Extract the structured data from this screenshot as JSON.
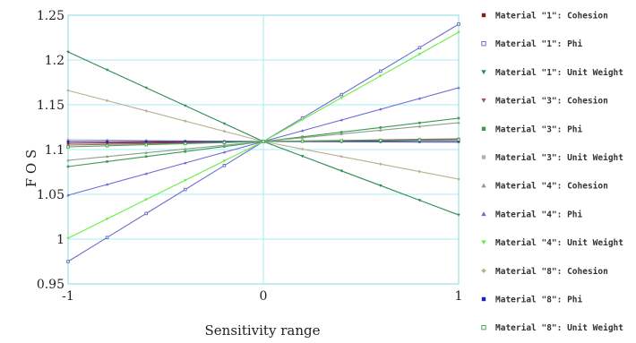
{
  "chart_data": {
    "type": "line",
    "title": "",
    "xlabel": "Sensitivity range",
    "ylabel": "F O S",
    "xlim": [
      -1,
      1
    ],
    "ylim": [
      0.95,
      1.25
    ],
    "x_ticks": [
      "-1",
      "0",
      "1"
    ],
    "y_ticks": [
      "0.95",
      "1",
      "1.05",
      "1.1",
      "1.15",
      "1.2",
      "1.25"
    ],
    "grid": true,
    "legend_position": "right",
    "x": [
      -1,
      -0.8,
      -0.6,
      -0.4,
      -0.2,
      0,
      0.2,
      0.4,
      0.6,
      0.8,
      1
    ],
    "series": [
      {
        "name": "Material \"1\": Cohesion",
        "color": "#8b1a1a",
        "marker": "square",
        "values": [
          1.107,
          1.1074,
          1.1078,
          1.1082,
          1.1086,
          1.109,
          1.1094,
          1.1098,
          1.1102,
          1.1106,
          1.111
        ]
      },
      {
        "name": "Material \"1\": Phi",
        "color": "#7070c8",
        "marker": "square-open",
        "values": [
          0.975,
          1.0018,
          1.0286,
          1.0554,
          1.0822,
          1.109,
          1.1352,
          1.1614,
          1.1876,
          1.2138,
          1.24
        ]
      },
      {
        "name": "Material \"1\": Unit Weight",
        "color": "#2e8b57",
        "marker": "triangle-down",
        "values": [
          1.209,
          1.189,
          1.169,
          1.149,
          1.129,
          1.109,
          1.0926,
          1.0762,
          1.0598,
          1.0434,
          1.027
        ]
      },
      {
        "name": "Material \"3\": Cohesion",
        "color": "#a05a6a",
        "marker": "triangle-down",
        "values": [
          1.105,
          1.1058,
          1.1066,
          1.1074,
          1.1082,
          1.109,
          1.1096,
          1.1102,
          1.1108,
          1.1114,
          1.112
        ]
      },
      {
        "name": "Material \"3\": Phi",
        "color": "#3c9a50",
        "marker": "square",
        "values": [
          1.081,
          1.0866,
          1.0922,
          1.0978,
          1.1034,
          1.109,
          1.1142,
          1.1194,
          1.1246,
          1.1298,
          1.135
        ]
      },
      {
        "name": "Material \"3\": Unit Weight",
        "color": "#b0b0b0",
        "marker": "square",
        "values": [
          1.111,
          1.1106,
          1.1102,
          1.1098,
          1.1094,
          1.109,
          1.1088,
          1.1086,
          1.1084,
          1.1082,
          1.108
        ]
      },
      {
        "name": "Material \"4\": Cohesion",
        "color": "#8aa08a",
        "marker": "triangle-up",
        "values": [
          1.088,
          1.0922,
          1.0964,
          1.1006,
          1.1048,
          1.109,
          1.1132,
          1.1174,
          1.1216,
          1.1258,
          1.13
        ]
      },
      {
        "name": "Material \"4\": Phi",
        "color": "#6a6ad8",
        "marker": "triangle-up",
        "values": [
          1.049,
          1.061,
          1.073,
          1.085,
          1.097,
          1.109,
          1.121,
          1.133,
          1.145,
          1.157,
          1.169
        ]
      },
      {
        "name": "Material \"4\": Unit Weight",
        "color": "#66ee44",
        "marker": "triangle-down",
        "values": [
          1.001,
          1.0226,
          1.0442,
          1.0658,
          1.0874,
          1.109,
          1.1334,
          1.1578,
          1.1822,
          1.2066,
          1.231
        ]
      },
      {
        "name": "Material \"8\": Cohesion",
        "color": "#b8b090",
        "marker": "diamond",
        "values": [
          1.166,
          1.1546,
          1.1432,
          1.1318,
          1.1204,
          1.109,
          1.1006,
          1.0922,
          1.0838,
          1.0754,
          1.067
        ]
      },
      {
        "name": "Material \"8\": Phi",
        "color": "#2020c0",
        "marker": "square",
        "values": [
          1.109,
          1.109,
          1.109,
          1.109,
          1.109,
          1.109,
          1.109,
          1.109,
          1.109,
          1.109,
          1.109
        ]
      },
      {
        "name": "Material \"8\": Unit Weight",
        "color": "#4aaa4a",
        "marker": "square-open",
        "values": [
          1.103,
          1.1042,
          1.1054,
          1.1066,
          1.1078,
          1.109,
          1.1094,
          1.1098,
          1.1102,
          1.1106,
          1.111
        ]
      }
    ]
  }
}
